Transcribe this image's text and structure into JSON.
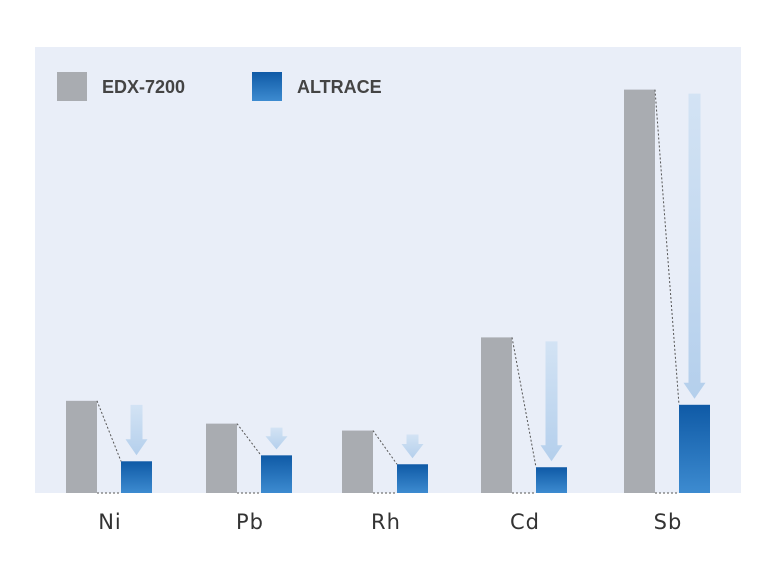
{
  "chart_data": {
    "type": "bar",
    "categories": [
      "Ni",
      "Pb",
      "Rh",
      "Cd",
      "Sb"
    ],
    "series": [
      {
        "name": "EDX-7200",
        "color": "#a9acb1",
        "values": [
          93,
          70,
          63,
          157,
          407
        ]
      },
      {
        "name": "ALTRACE",
        "color": "#1a67b2",
        "values": [
          32,
          38,
          29,
          26,
          89
        ]
      }
    ],
    "ylim": [
      0,
      450
    ]
  }
}
